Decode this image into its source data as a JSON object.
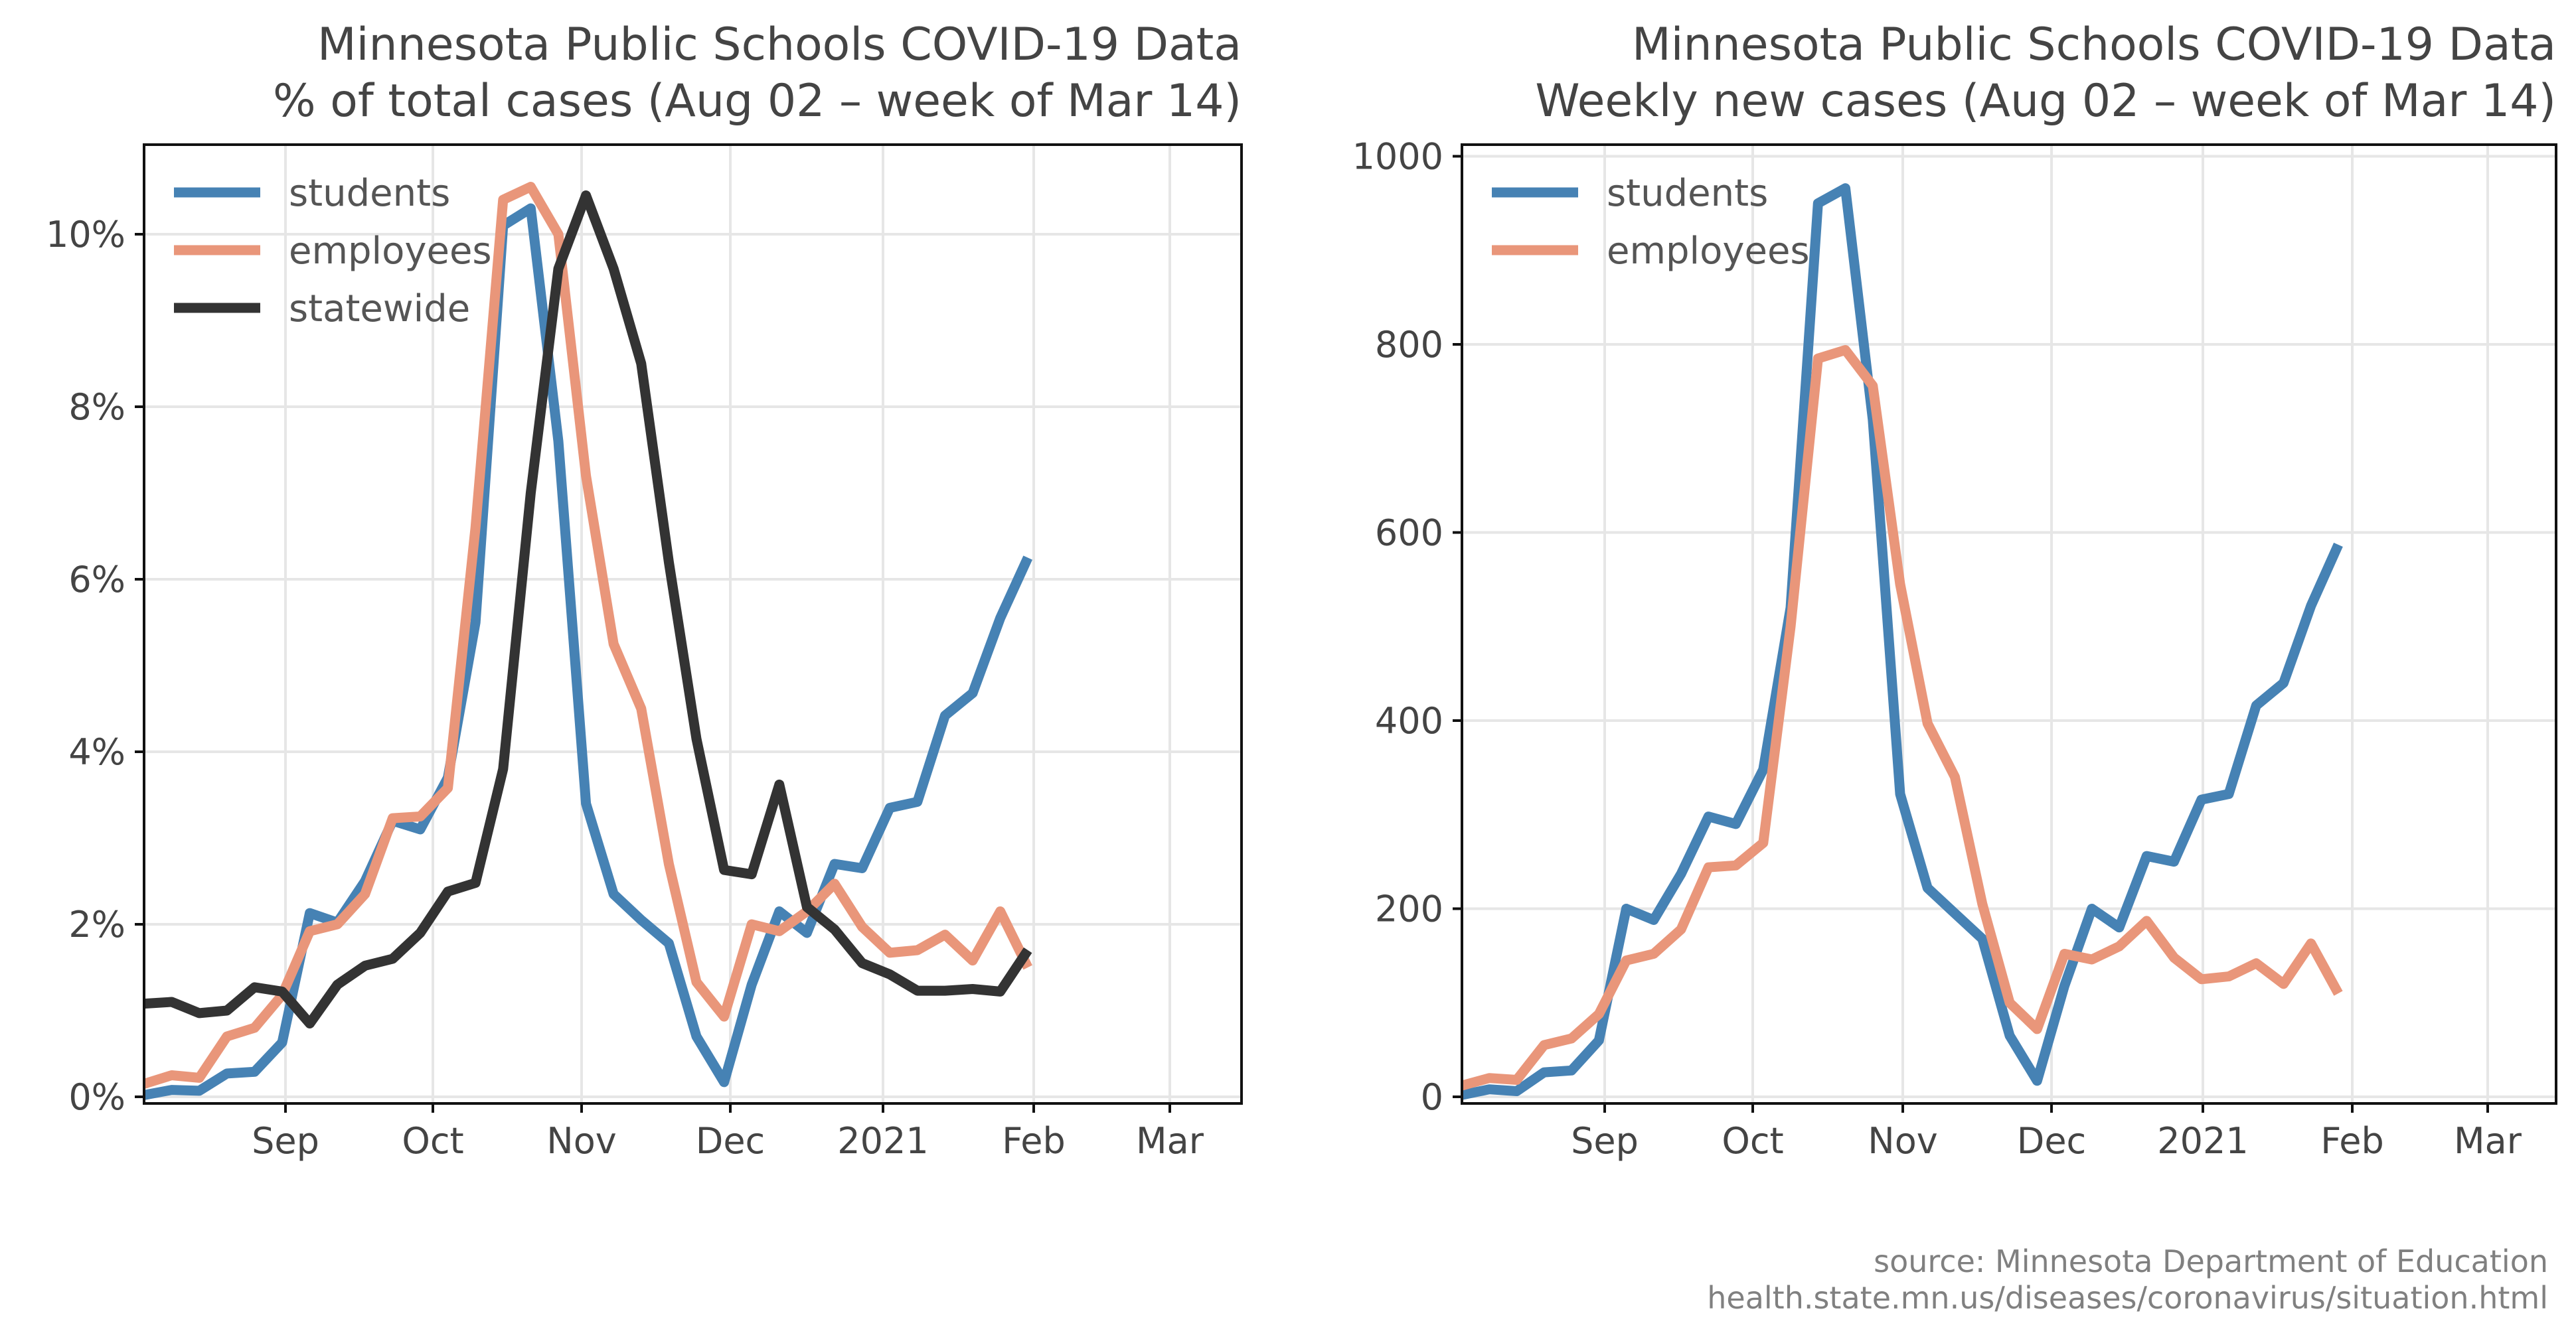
{
  "colors": {
    "students": "#4682b4",
    "employees": "#e9967a",
    "statewide": "#333333",
    "grid": "#e6e6e6"
  },
  "source": {
    "line1": "source: Minnesota Department of Education",
    "line2": "health.state.mn.us/diseases/coronavirus/situation.html"
  },
  "chart_data": [
    {
      "type": "line",
      "title_line1": "Minnesota Public Schools COVID-19 Data",
      "title_line2": "% of total cases (Aug 02 – week of Mar 14)",
      "x_ticks": [
        "Sep",
        "Oct",
        "Nov",
        "Dec",
        "2021",
        "Feb",
        "Mar"
      ],
      "y_ticks": [
        "0%",
        "2%",
        "4%",
        "6%",
        "8%",
        "10%"
      ],
      "ylim": [
        0,
        11
      ],
      "grid": true,
      "legend_position": "top-left",
      "series": [
        {
          "name": "students",
          "color": "#4682b4",
          "values": [
            0.02,
            0.08,
            0.07,
            0.27,
            0.29,
            0.63,
            2.13,
            2.02,
            2.5,
            3.2,
            3.1,
            3.7,
            5.5,
            10.1,
            10.3,
            7.6,
            3.4,
            2.35,
            2.05,
            1.78,
            0.7,
            0.17,
            1.3,
            2.15,
            1.9,
            2.7,
            2.65,
            3.35,
            3.42,
            4.42,
            4.68,
            5.55,
            6.25
          ]
        },
        {
          "name": "employees",
          "color": "#e9967a",
          "values": [
            0.15,
            0.25,
            0.22,
            0.7,
            0.8,
            1.18,
            1.92,
            2.0,
            2.35,
            3.23,
            3.25,
            3.58,
            6.6,
            10.4,
            10.55,
            10.0,
            7.2,
            5.25,
            4.5,
            2.7,
            1.33,
            0.93,
            2.0,
            1.92,
            2.15,
            2.47,
            1.97,
            1.67,
            1.7,
            1.88,
            1.58,
            2.15,
            1.5
          ]
        },
        {
          "name": "statewide",
          "color": "#333333",
          "values": [
            1.08,
            1.1,
            0.97,
            1.0,
            1.27,
            1.22,
            0.85,
            1.3,
            1.52,
            1.6,
            1.9,
            2.38,
            2.48,
            3.8,
            7.0,
            9.6,
            10.45,
            9.6,
            8.5,
            6.2,
            4.15,
            2.63,
            2.58,
            3.62,
            2.2,
            1.94,
            1.55,
            1.42,
            1.23,
            1.23,
            1.25,
            1.22,
            1.7
          ]
        }
      ]
    },
    {
      "type": "line",
      "title_line1": "Minnesota Public Schools COVID-19 Data",
      "title_line2": "Weekly new cases (Aug 02 – week of Mar 14)",
      "x_ticks": [
        "Sep",
        "Oct",
        "Nov",
        "Dec",
        "2021",
        "Feb",
        "Mar"
      ],
      "y_ticks": [
        "0",
        "200",
        "400",
        "600",
        "800",
        "1000"
      ],
      "ylim": [
        0,
        1000
      ],
      "grid": true,
      "legend_position": "top-left",
      "series": [
        {
          "name": "students",
          "color": "#4682b4",
          "values": [
            2,
            8,
            6,
            26,
            28,
            60,
            200,
            188,
            237,
            298,
            290,
            348,
            520,
            950,
            966,
            720,
            322,
            222,
            195,
            168,
            65,
            17,
            118,
            200,
            180,
            256,
            250,
            316,
            322,
            416,
            440,
            522,
            587
          ]
        },
        {
          "name": "employees",
          "color": "#e9967a",
          "values": [
            12,
            20,
            18,
            55,
            62,
            88,
            145,
            152,
            178,
            244,
            246,
            270,
            500,
            785,
            794,
            756,
            545,
            397,
            340,
            205,
            100,
            72,
            152,
            146,
            160,
            187,
            148,
            125,
            128,
            142,
            120,
            163,
            110
          ]
        }
      ]
    }
  ]
}
